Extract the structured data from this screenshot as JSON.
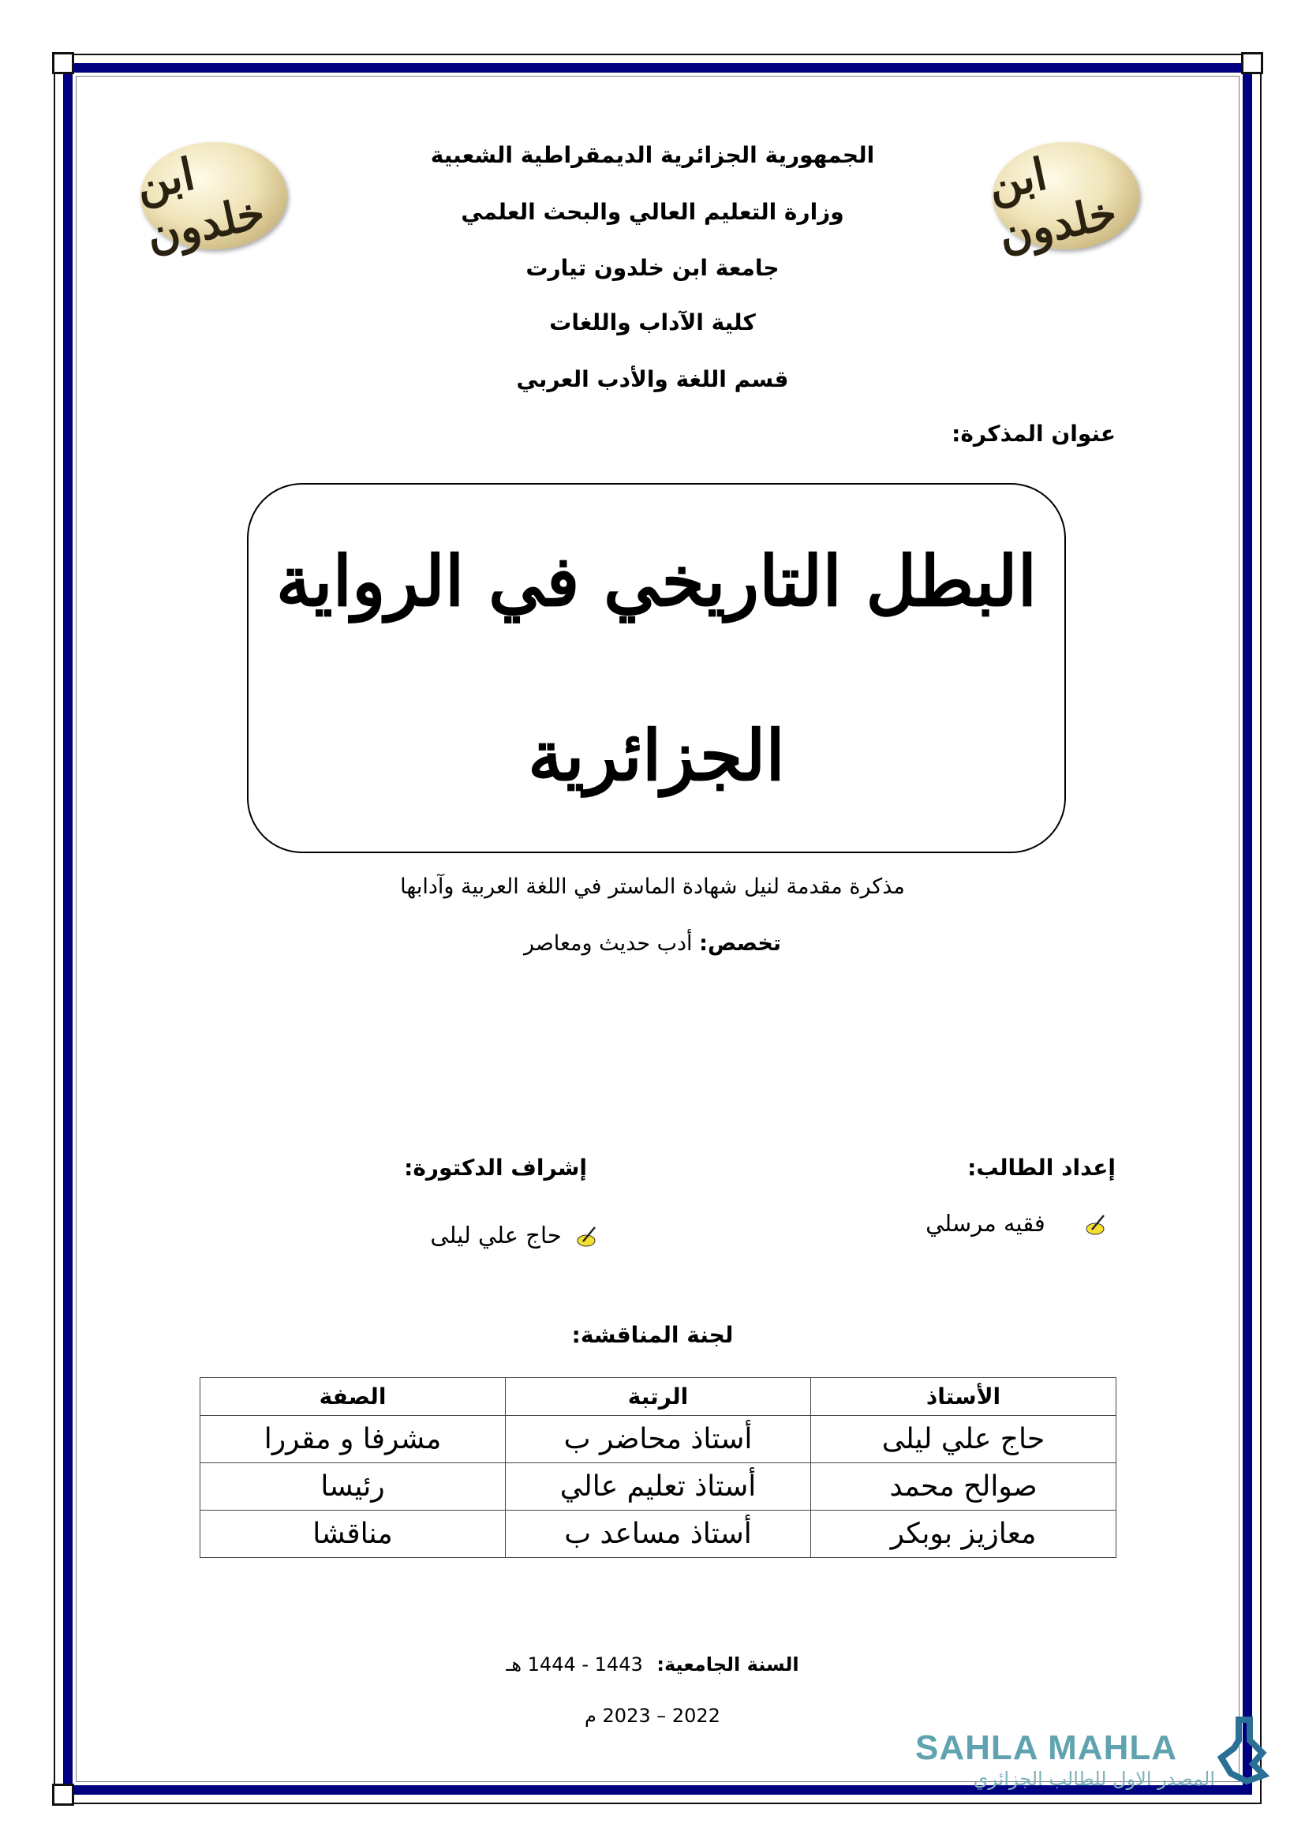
{
  "header": {
    "lines": [
      "الجمهورية الجزائرية الديمقراطية الشعبية",
      "وزارة التعليم العالي والبحث العلمي",
      "جامعة ابن خلدون تيارت",
      "كلية الآداب واللغات",
      "قسم اللغة والأدب العربي"
    ],
    "logo_text": "ابن خلدون"
  },
  "thesis": {
    "title_label": "عنوان المذكرة:",
    "title_line1": "البطل التاريخي في الرواية",
    "title_line2": "الجزائرية",
    "subtitle": "مذكرة مقدمة لنيل شهادة الماستر في اللغة العربية وآدابها",
    "specialty_label": "تخصص:",
    "specialty_value": "أدب حديث ومعاصر"
  },
  "people": {
    "student_label": "إعداد الطالب:",
    "student_name": "فقيه مرسلي",
    "supervisor_label": "إشراف الدكتورة:",
    "supervisor_name": "حاج علي ليلى",
    "bullet_icon": "writing-hand-icon"
  },
  "committee": {
    "label": "لجنة المناقشة:",
    "headers": [
      "الأستاذ",
      "الرتبة",
      "الصفة"
    ],
    "rows": [
      [
        "حاج علي ليلى",
        "أستاذ محاضر ب",
        "مشرفا و مقررا"
      ],
      [
        "صوالح محمد",
        "أستاذ تعليم عالي",
        "رئيسا"
      ],
      [
        "معازيز بوبكر",
        "أستاذ مساعد ب",
        "مناقشا"
      ]
    ]
  },
  "year": {
    "label": "السنة الجامعية:",
    "hijri": "1443 - 1444 هـ",
    "gregorian": "2022 – 2023 م"
  },
  "watermark": {
    "brand": "SAHLA MAHLA",
    "tagline": "المصدر الاول للطالب الجزائري",
    "color": "#5fa3b0"
  },
  "colors": {
    "frame": "#000080"
  }
}
